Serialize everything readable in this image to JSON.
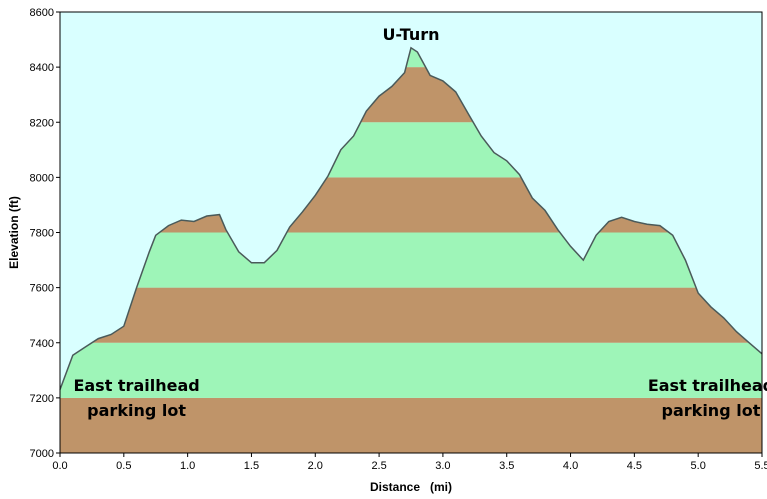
{
  "chart_data": {
    "type": "area",
    "title": "",
    "xlabel": "Distance   (mi)",
    "ylabel": "Elevation (ft)",
    "xlim": [
      0,
      5.5
    ],
    "ylim": [
      7000,
      8600
    ],
    "x_ticks": [
      "0.0",
      "0.5",
      "1.0",
      "1.5",
      "2.0",
      "2.5",
      "3.0",
      "3.5",
      "4.0",
      "4.5",
      "5.0",
      "5.5"
    ],
    "y_ticks": [
      "7000",
      "7200",
      "7400",
      "7600",
      "7800",
      "8000",
      "8200",
      "8400",
      "8600"
    ],
    "colors": {
      "background": "#d9ffff",
      "band_green": "#9ef5b8",
      "band_brown": "#bf9469",
      "profile_line": "#4a5a5a"
    },
    "series": [
      {
        "x": [
          0.0,
          0.1,
          0.2,
          0.3,
          0.4,
          0.5,
          0.6,
          0.7,
          0.75,
          0.85,
          0.95,
          1.05,
          1.15,
          1.25,
          1.3,
          1.4,
          1.5,
          1.6,
          1.7,
          1.8,
          1.9,
          2.0,
          2.1,
          2.2,
          2.3,
          2.4,
          2.5,
          2.6,
          2.7,
          2.75,
          2.8,
          2.9,
          3.0,
          3.1,
          3.2,
          3.3,
          3.4,
          3.5,
          3.6,
          3.7,
          3.8,
          3.9,
          4.0,
          4.1,
          4.2,
          4.3,
          4.4,
          4.5,
          4.6,
          4.7,
          4.8,
          4.9,
          5.0,
          5.1,
          5.2,
          5.3,
          5.4,
          5.5
        ],
        "y": [
          7230,
          7355,
          7385,
          7415,
          7430,
          7460,
          7600,
          7730,
          7790,
          7825,
          7845,
          7840,
          7860,
          7865,
          7810,
          7730,
          7690,
          7690,
          7735,
          7820,
          7875,
          7935,
          8005,
          8100,
          8150,
          8240,
          8295,
          8330,
          8380,
          8470,
          8455,
          8370,
          8350,
          8310,
          8230,
          8150,
          8090,
          8060,
          8010,
          7925,
          7880,
          7810,
          7750,
          7700,
          7790,
          7840,
          7855,
          7840,
          7830,
          7825,
          7790,
          7700,
          7580,
          7530,
          7490,
          7440,
          7400,
          7360
        ]
      }
    ],
    "annotations": [
      {
        "text": "U-Turn",
        "x": 2.75,
        "y": 8470
      },
      {
        "text_line1": "East trailhead",
        "text_line2": "parking lot",
        "x": 0.3,
        "y": 7230
      },
      {
        "text_line1": "East trailhead",
        "text_line2": "parking lot",
        "x": 5.0,
        "y": 7360
      }
    ]
  }
}
